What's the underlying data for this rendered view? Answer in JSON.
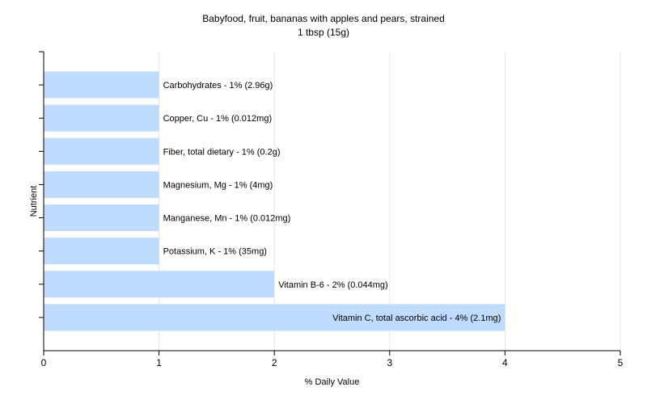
{
  "chart_data": {
    "type": "bar",
    "orientation": "horizontal",
    "title": "Babyfood, fruit, bananas with apples and pears, strained",
    "subtitle": "1 tbsp (15g)",
    "xlabel": "% Daily Value",
    "ylabel": "Nutrient",
    "xlim": [
      0,
      5
    ],
    "xticks": [
      "0",
      "1",
      "2",
      "3",
      "4",
      "5"
    ],
    "grid": "vertical",
    "bar_color": "#bfdcff",
    "categories": [
      "Carbohydrates",
      "Copper, Cu",
      "Fiber, total dietary",
      "Magnesium, Mg",
      "Manganese, Mn",
      "Potassium, K",
      "Vitamin B-6",
      "Vitamin C, total ascorbic acid"
    ],
    "values": [
      1,
      1,
      1,
      1,
      1,
      1,
      2,
      4
    ],
    "bar_labels": [
      "Carbohydrates - 1% (2.96g)",
      "Copper, Cu - 1% (0.012mg)",
      "Fiber, total dietary - 1% (0.2g)",
      "Magnesium, Mg - 1% (4mg)",
      "Manganese, Mn - 1% (0.012mg)",
      "Potassium, K - 1% (35mg)",
      "Vitamin B-6 - 2% (0.044mg)",
      "Vitamin C, total ascorbic acid - 4% (2.1mg)"
    ]
  }
}
